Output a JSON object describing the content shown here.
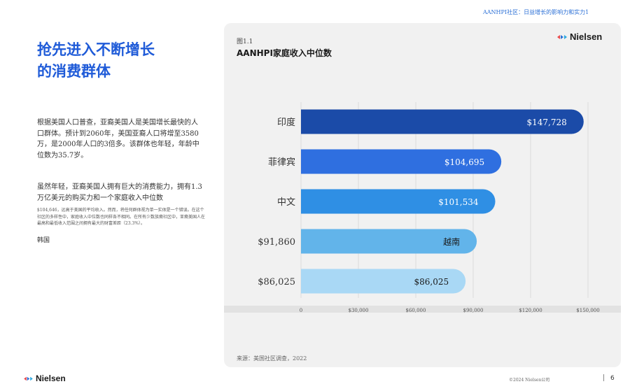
{
  "header": {
    "note": "AANHPI社区：日益增长的影响力和实力1"
  },
  "title": {
    "line1": "抢先进入不断增长",
    "line2": "的消费群体"
  },
  "body": {
    "p1": "根据美国人口普查，亚裔美国人是美国增长最快的人口群体。预计到2060年，美国亚裔人口将增至3580万，是2000年人口的3倍多。该群体也年轻，年龄中位数为35.7岁。",
    "p2": "虽然年轻，亚裔美国人拥有巨大的消费能力，拥有1.3万亿美元的购买力和一个家庭收入中位数",
    "p3": "$104,646，远高于美国的平均收入。然而，将任何群体视为单一实体是一个错误。在这个社区的多样性中，家庭收入中位数也同样各不相同。在所有少数族裔社区中，亚裔美国人在最高和最低收入范围之间拥有最大的财富差距（23.3%）。",
    "p4": "韩国"
  },
  "figure": {
    "label": "图1.1",
    "title": "AANHPI家庭收入中位数",
    "source": "来源：美国社区调查，2022"
  },
  "logo": {
    "text": "Nielsen",
    "colors": [
      "#e8464a",
      "#2a6fd6",
      "#2aa8e0"
    ]
  },
  "footer": {
    "copyright": "©2024 Nielsen公司",
    "page": "6"
  },
  "chart_data": {
    "type": "bar",
    "orientation": "horizontal",
    "categories": [
      "印度",
      "菲律宾",
      "中文",
      "$91,860",
      "$86,025"
    ],
    "values": [
      147728,
      104695,
      101534,
      91860,
      86025
    ],
    "data_labels": [
      "$147,728",
      "$104,695",
      "$101,534",
      "越南",
      "$86,025"
    ],
    "colors": [
      "#1b4ba8",
      "#2f6fe0",
      "#2f8fe4",
      "#62b4ea",
      "#a9d8f5"
    ],
    "label_colors": [
      "#ffffff",
      "#ffffff",
      "#ffffff",
      "#1a1a1a",
      "#1a1a1a"
    ],
    "xlim": [
      0,
      150000
    ],
    "xticks": [
      0,
      30000,
      60000,
      90000,
      120000,
      150000
    ],
    "xtick_labels": [
      "0",
      "$30,000",
      "$60,000",
      "$90,000",
      "$120,000",
      "$150,000"
    ],
    "grid": true
  }
}
